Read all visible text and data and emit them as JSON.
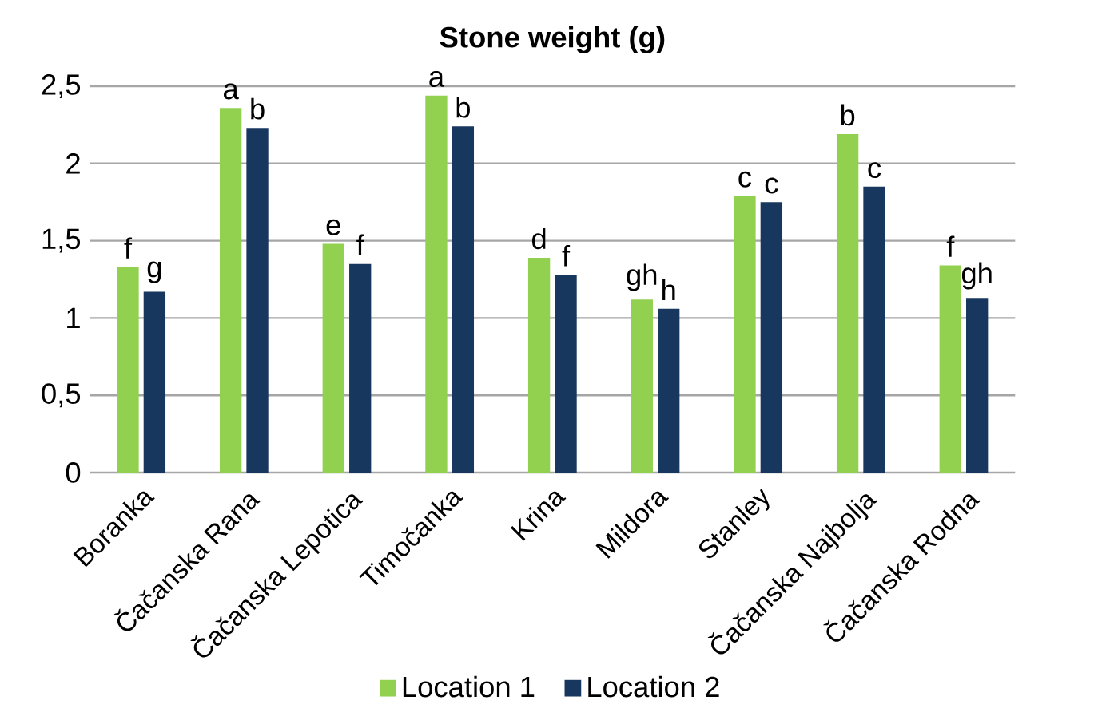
{
  "chart_data": {
    "type": "bar",
    "title": "Stone weight (g)",
    "categories": [
      "Boranka",
      "Čačanska Rana",
      "Čačanska Lepotica",
      "Timočanka",
      "Krina",
      "Mildora",
      "Stanley",
      "Čačanska Najbolja",
      "Čačanska Rodna"
    ],
    "series": [
      {
        "name": "Location 1",
        "color": "#92d050",
        "values": [
          1.33,
          2.36,
          1.48,
          2.44,
          1.39,
          1.12,
          1.79,
          2.19,
          1.34
        ],
        "value_labels": [
          "f",
          "a",
          "e",
          "a",
          "d",
          "gh",
          "c",
          "b",
          "f"
        ]
      },
      {
        "name": "Location 2",
        "color": "#17375e",
        "values": [
          1.17,
          2.23,
          1.35,
          2.24,
          1.28,
          1.06,
          1.75,
          1.85,
          1.13
        ],
        "value_labels": [
          "g",
          "b",
          "f",
          "b",
          "f",
          "h",
          "c",
          "c",
          "gh"
        ]
      }
    ],
    "ylim": [
      0,
      2.5
    ],
    "yticks": [
      {
        "value": 0,
        "label": "0"
      },
      {
        "value": 0.5,
        "label": "0,5"
      },
      {
        "value": 1,
        "label": "1"
      },
      {
        "value": 1.5,
        "label": "1,5"
      },
      {
        "value": 2,
        "label": "2"
      },
      {
        "value": 2.5,
        "label": "2,5"
      }
    ],
    "grid": "y",
    "legend": "bottom"
  }
}
